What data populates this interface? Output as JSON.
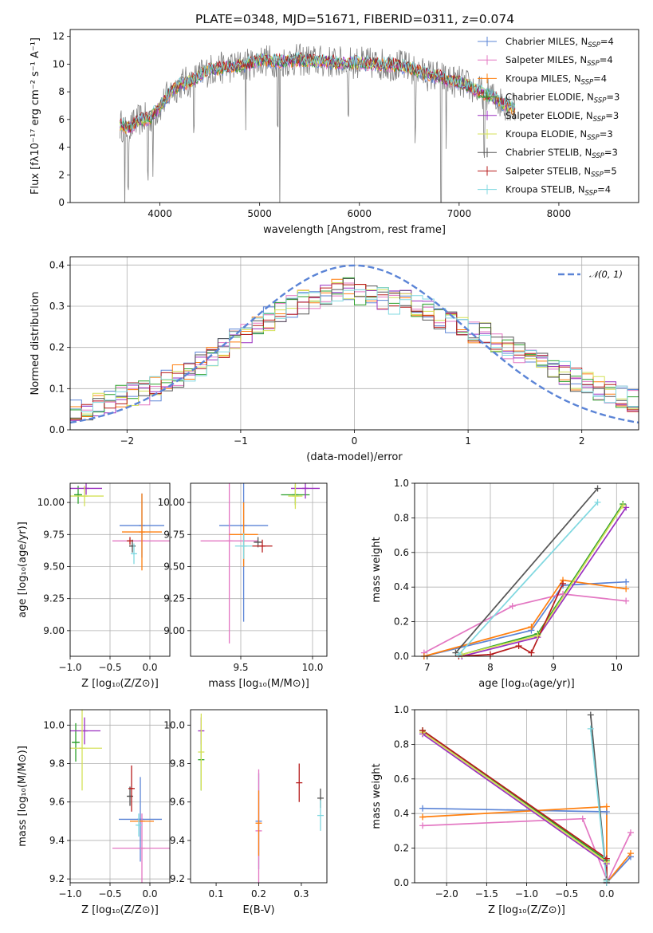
{
  "page": {
    "title": "PLATE=0348, MJD=51671, FIBERID=0311, z=0.074"
  },
  "chart_data": [
    {
      "id": "spectrum",
      "type": "line",
      "title": "PLATE=0348, MJD=51671, FIBERID=0311, z=0.074",
      "xlabel": "wavelength [Angstrom, rest frame]",
      "ylabel": "Flux [fλ10⁻¹⁷ erg cm⁻² s⁻¹ A⁻¹]",
      "xlim": [
        3100,
        8800
      ],
      "ylim": [
        0,
        12.5
      ],
      "xticks": [
        4000,
        5000,
        6000,
        7000,
        8000
      ],
      "yticks": [
        0,
        2,
        4,
        6,
        8,
        10,
        12
      ],
      "grid": false,
      "legend": "upper right",
      "data_x": [
        3600,
        3700,
        3800,
        3900,
        4000,
        4100,
        4200,
        4300,
        4400,
        4500,
        4600,
        4700,
        4800,
        4900,
        5000,
        5200,
        5400,
        5600,
        5800,
        6000,
        6200,
        6400,
        6500,
        6600,
        6700,
        6800,
        6900,
        7000,
        7100,
        7200,
        7300,
        7400,
        7500,
        7550
      ],
      "data_y": [
        5.6,
        5.4,
        6.0,
        6.1,
        6.9,
        7.9,
        8.6,
        8.7,
        9.2,
        9.6,
        9.7,
        9.8,
        9.9,
        10.0,
        10.3,
        10.2,
        10.3,
        10.2,
        10.1,
        10.1,
        10.0,
        9.9,
        9.7,
        9.4,
        9.2,
        9.1,
        8.8,
        8.7,
        8.4,
        8.0,
        7.8,
        7.3,
        7.0,
        6.8
      ],
      "legend_entries": [
        {
          "label": "Chabrier MILES, N",
          "sub": "SSP",
          "suffix": "=4",
          "color": "#5b84d6"
        },
        {
          "label": "Salpeter MILES, N",
          "sub": "SSP",
          "suffix": "=4",
          "color": "#e377c2"
        },
        {
          "label": "Kroupa MILES, N",
          "sub": "SSP",
          "suffix": "=4",
          "color": "#ff7f0e"
        },
        {
          "label": "Chabrier ELODIE, N",
          "sub": "SSP",
          "suffix": "=3",
          "color": "#2ca02c"
        },
        {
          "label": "Salpeter ELODIE, N",
          "sub": "SSP",
          "suffix": "=3",
          "color": "#9b30c0"
        },
        {
          "label": "Kroupa ELODIE, N",
          "sub": "SSP",
          "suffix": "=3",
          "color": "#d4e157"
        },
        {
          "label": "Chabrier STELIB, N",
          "sub": "SSP",
          "suffix": "=3",
          "color": "#555555"
        },
        {
          "label": "Salpeter STELIB, N",
          "sub": "SSP",
          "suffix": "=5",
          "color": "#b71c1c"
        },
        {
          "label": "Kroupa STELIB, N",
          "sub": "SSP",
          "suffix": "=4",
          "color": "#80d8e0"
        }
      ]
    },
    {
      "id": "residuals",
      "type": "line",
      "xlabel": "(data-model)/error",
      "ylabel": "Normed distribution",
      "xlim": [
        -2.5,
        2.5
      ],
      "ylim": [
        0,
        0.42
      ],
      "xticks": [
        -2,
        -1,
        0,
        1,
        2
      ],
      "yticks": [
        0.0,
        0.1,
        0.2,
        0.3,
        0.4
      ],
      "grid": true,
      "legend": "upper right",
      "legend_label": "𝒩(0, 1)",
      "gaussian_color": "#5b84d6",
      "hist_centers": [
        -2.45,
        -2.35,
        -2.25,
        -2.15,
        -2.05,
        -1.95,
        -1.85,
        -1.75,
        -1.65,
        -1.55,
        -1.45,
        -1.35,
        -1.25,
        -1.15,
        -1.05,
        -0.95,
        -0.85,
        -0.75,
        -0.65,
        -0.55,
        -0.45,
        -0.35,
        -0.25,
        -0.15,
        -0.05,
        0.05,
        0.15,
        0.25,
        0.35,
        0.45,
        0.55,
        0.65,
        0.75,
        0.85,
        0.95,
        1.05,
        1.15,
        1.25,
        1.35,
        1.45,
        1.55,
        1.65,
        1.75,
        1.85,
        1.95,
        2.05,
        2.15,
        2.25,
        2.35,
        2.45
      ],
      "hist_base": [
        0.045,
        0.05,
        0.06,
        0.07,
        0.08,
        0.085,
        0.09,
        0.1,
        0.12,
        0.13,
        0.14,
        0.16,
        0.18,
        0.2,
        0.22,
        0.24,
        0.26,
        0.27,
        0.29,
        0.3,
        0.31,
        0.32,
        0.33,
        0.34,
        0.34,
        0.33,
        0.33,
        0.32,
        0.31,
        0.31,
        0.3,
        0.29,
        0.27,
        0.26,
        0.25,
        0.24,
        0.23,
        0.21,
        0.2,
        0.19,
        0.18,
        0.16,
        0.15,
        0.14,
        0.12,
        0.11,
        0.1,
        0.09,
        0.08,
        0.07
      ]
    },
    {
      "id": "age-vs-Z",
      "type": "scatter",
      "xlabel": "Z [log₁₀(Z/Z⊙)]",
      "ylabel": "age  [log₁₀(age/yr)]",
      "xlim": [
        -1.0,
        0.25
      ],
      "ylim": [
        8.8,
        10.15
      ],
      "xticks": [
        -1.0,
        -0.5,
        0.0
      ],
      "yticks": [
        9.0,
        9.25,
        9.5,
        9.75,
        10.0
      ],
      "grid": true,
      "points": [
        {
          "x": -0.1,
          "y": 9.82,
          "xerr": 0.28,
          "yerr": 0.25,
          "color": "#5b84d6"
        },
        {
          "x": -0.1,
          "y": 9.7,
          "xerr": 0.37,
          "yerr": 0.0,
          "color": "#e377c2"
        },
        {
          "x": -0.1,
          "y": 9.77,
          "xerr": 0.25,
          "yerr": 0.3,
          "color": "#ff7f0e"
        },
        {
          "x": -0.9,
          "y": 10.06,
          "xerr": 0.05,
          "yerr": 0.07,
          "color": "#2ca02c"
        },
        {
          "x": -0.8,
          "y": 10.11,
          "xerr": 0.2,
          "yerr": 0.05,
          "color": "#9b30c0"
        },
        {
          "x": -0.82,
          "y": 10.05,
          "xerr": 0.24,
          "yerr": 0.08,
          "color": "#d4e157"
        },
        {
          "x": -0.22,
          "y": 9.66,
          "xerr": 0.04,
          "yerr": 0.05,
          "color": "#555555"
        },
        {
          "x": -0.25,
          "y": 9.7,
          "xerr": 0.03,
          "yerr": 0.03,
          "color": "#b71c1c"
        },
        {
          "x": -0.2,
          "y": 9.6,
          "xerr": 0.02,
          "yerr": 0.08,
          "color": "#80d8e0"
        }
      ]
    },
    {
      "id": "age-vs-mass",
      "type": "scatter",
      "xlabel": "mass [log₁₀(M/M⊙)]",
      "ylabel": "",
      "xlim": [
        9.15,
        10.1
      ],
      "ylim": [
        8.8,
        10.15
      ],
      "xticks": [
        9.5,
        10.0
      ],
      "yticks": [
        9.0,
        9.25,
        9.5,
        9.75,
        10.0
      ],
      "grid": true,
      "points": [
        {
          "x": 9.52,
          "y": 9.82,
          "xerr": 0.17,
          "yerr": 0.75,
          "color": "#5b84d6"
        },
        {
          "x": 9.42,
          "y": 9.7,
          "xerr": 0.2,
          "yerr": 0.8,
          "color": "#e377c2"
        },
        {
          "x": 9.52,
          "y": 9.75,
          "xerr": 0.1,
          "yerr": 0.25,
          "color": "#ff7f0e"
        },
        {
          "x": 9.88,
          "y": 10.06,
          "xerr": 0.1,
          "yerr": 0.08,
          "color": "#2ca02c"
        },
        {
          "x": 9.95,
          "y": 10.11,
          "xerr": 0.1,
          "yerr": 0.08,
          "color": "#9b30c0"
        },
        {
          "x": 9.88,
          "y": 10.05,
          "xerr": 0.05,
          "yerr": 0.1,
          "color": "#d4e157"
        },
        {
          "x": 9.62,
          "y": 9.69,
          "xerr": 0.03,
          "yerr": 0.04,
          "color": "#555555"
        },
        {
          "x": 9.65,
          "y": 9.66,
          "xerr": 0.07,
          "yerr": 0.05,
          "color": "#b71c1c"
        },
        {
          "x": 9.52,
          "y": 9.66,
          "xerr": 0.06,
          "yerr": 0.1,
          "color": "#80d8e0"
        }
      ]
    },
    {
      "id": "weight-vs-age",
      "type": "line",
      "xlabel": "age  [log₁₀(age/yr)]",
      "ylabel": "mass weight",
      "xlim": [
        6.8,
        10.35
      ],
      "ylim": [
        0,
        1.0
      ],
      "xticks": [
        7,
        8,
        9,
        10
      ],
      "yticks": [
        0.0,
        0.2,
        0.4,
        0.6,
        0.8,
        1.0
      ],
      "grid": true,
      "series": [
        {
          "color": "#5b84d6",
          "x": [
            6.95,
            8.65,
            9.15,
            10.15
          ],
          "y": [
            0.0,
            0.15,
            0.41,
            0.43
          ]
        },
        {
          "color": "#e377c2",
          "x": [
            6.95,
            8.35,
            9.15,
            10.15
          ],
          "y": [
            0.02,
            0.29,
            0.36,
            0.32
          ]
        },
        {
          "color": "#ff7f0e",
          "x": [
            6.95,
            8.65,
            9.15,
            10.15
          ],
          "y": [
            0.0,
            0.17,
            0.44,
            0.39
          ]
        },
        {
          "color": "#2ca02c",
          "x": [
            7.55,
            8.75,
            10.1
          ],
          "y": [
            0.01,
            0.13,
            0.88
          ]
        },
        {
          "color": "#9b30c0",
          "x": [
            7.55,
            8.75,
            10.15
          ],
          "y": [
            0.0,
            0.11,
            0.86
          ]
        },
        {
          "color": "#d4e157",
          "x": [
            7.55,
            8.75,
            10.1
          ],
          "y": [
            0.01,
            0.12,
            0.87
          ]
        },
        {
          "color": "#555555",
          "x": [
            7.45,
            9.7
          ],
          "y": [
            0.02,
            0.97
          ]
        },
        {
          "color": "#b71c1c",
          "x": [
            7.5,
            8.0,
            8.45,
            8.65,
            9.15
          ],
          "y": [
            0.0,
            0.01,
            0.06,
            0.02,
            0.42
          ]
        },
        {
          "color": "#80d8e0",
          "x": [
            7.5,
            9.7
          ],
          "y": [
            0.01,
            0.89
          ]
        }
      ]
    },
    {
      "id": "mass-vs-Z",
      "type": "scatter",
      "xlabel": "Z [log₁₀(Z/Z⊙)]",
      "ylabel": "mass [log₁₀(M/M⊙)]",
      "xlim": [
        -1.0,
        0.25
      ],
      "ylim": [
        9.18,
        10.08
      ],
      "xticks": [
        -1.0,
        -0.5,
        0.0
      ],
      "yticks": [
        9.2,
        9.4,
        9.6,
        9.8,
        10.0
      ],
      "grid": true,
      "points": [
        {
          "x": -0.12,
          "y": 9.51,
          "xerr": 0.27,
          "yerr": 0.22,
          "color": "#5b84d6"
        },
        {
          "x": -0.1,
          "y": 9.36,
          "xerr": 0.37,
          "yerr": 0.18,
          "color": "#e377c2"
        },
        {
          "x": -0.1,
          "y": 9.5,
          "xerr": 0.15,
          "yerr": 0.0,
          "color": "#ff7f0e"
        },
        {
          "x": -0.93,
          "y": 9.91,
          "xerr": 0.05,
          "yerr": 0.1,
          "color": "#2ca02c"
        },
        {
          "x": -0.82,
          "y": 9.97,
          "xerr": 0.2,
          "yerr": 0.07,
          "color": "#9b30c0"
        },
        {
          "x": -0.85,
          "y": 9.88,
          "xerr": 0.25,
          "yerr": 0.22,
          "color": "#d4e157"
        },
        {
          "x": -0.25,
          "y": 9.63,
          "xerr": 0.03,
          "yerr": 0.05,
          "color": "#555555"
        },
        {
          "x": -0.23,
          "y": 9.67,
          "xerr": 0.02,
          "yerr": 0.12,
          "color": "#b71c1c"
        },
        {
          "x": -0.14,
          "y": 9.48,
          "xerr": 0.02,
          "yerr": 0.06,
          "color": "#80d8e0"
        }
      ]
    },
    {
      "id": "mass-vs-EBV",
      "type": "scatter",
      "xlabel": "E(B-V)",
      "ylabel": "",
      "xlim": [
        0.04,
        0.36
      ],
      "ylim": [
        9.18,
        10.08
      ],
      "xticks": [
        0.1,
        0.2,
        0.3
      ],
      "yticks": [
        9.2,
        9.4,
        9.6,
        9.8,
        10.0
      ],
      "grid": false,
      "points": [
        {
          "x": 0.2,
          "y": 9.5,
          "xerr": 0.0,
          "yerr": 0.25,
          "color": "#5b84d6"
        },
        {
          "x": 0.2,
          "y": 9.45,
          "xerr": 0.0,
          "yerr": 0.32,
          "color": "#e377c2"
        },
        {
          "x": 0.2,
          "y": 9.49,
          "xerr": 0.0,
          "yerr": 0.17,
          "color": "#ff7f0e"
        },
        {
          "x": 0.065,
          "y": 9.82,
          "xerr": 0.0,
          "yerr": 0.16,
          "color": "#2ca02c"
        },
        {
          "x": 0.065,
          "y": 9.97,
          "xerr": 0.0,
          "yerr": 0.07,
          "color": "#9b30c0"
        },
        {
          "x": 0.065,
          "y": 9.86,
          "xerr": 0.0,
          "yerr": 0.2,
          "color": "#d4e157"
        },
        {
          "x": 0.345,
          "y": 9.62,
          "xerr": 0.0,
          "yerr": 0.05,
          "color": "#555555"
        },
        {
          "x": 0.295,
          "y": 9.7,
          "xerr": 0.0,
          "yerr": 0.1,
          "color": "#b71c1c"
        },
        {
          "x": 0.345,
          "y": 9.53,
          "xerr": 0.0,
          "yerr": 0.08,
          "color": "#80d8e0"
        }
      ]
    },
    {
      "id": "weight-vs-Z",
      "type": "line",
      "xlabel": "Z [log₁₀(Z/Z⊙)]",
      "ylabel": "mass weight",
      "xlim": [
        -2.4,
        0.4
      ],
      "ylim": [
        0,
        1.0
      ],
      "xticks": [
        -2.0,
        -1.5,
        -1.0,
        -0.5,
        0.0
      ],
      "yticks": [
        0.0,
        0.2,
        0.4,
        0.6,
        0.8,
        1.0
      ],
      "grid": true,
      "series": [
        {
          "color": "#5b84d6",
          "x": [
            -2.3,
            0.0,
            0.0,
            0.3
          ],
          "y": [
            0.43,
            0.41,
            0.0,
            0.15
          ]
        },
        {
          "color": "#e377c2",
          "x": [
            -2.3,
            -0.3,
            0.0,
            0.0,
            0.3
          ],
          "y": [
            0.33,
            0.37,
            0.02,
            0.0,
            0.29
          ]
        },
        {
          "color": "#ff7f0e",
          "x": [
            -2.3,
            0.0,
            0.0,
            0.3
          ],
          "y": [
            0.38,
            0.44,
            0.0,
            0.17
          ]
        },
        {
          "color": "#2ca02c",
          "x": [
            -2.3,
            0.0,
            0.0
          ],
          "y": [
            0.88,
            0.13,
            0.01
          ]
        },
        {
          "color": "#9b30c0",
          "x": [
            -2.3,
            0.0,
            0.0
          ],
          "y": [
            0.86,
            0.11,
            0.0
          ]
        },
        {
          "color": "#d4e157",
          "x": [
            -2.3,
            0.0,
            0.0
          ],
          "y": [
            0.87,
            0.12,
            0.01
          ]
        },
        {
          "color": "#555555",
          "x": [
            -0.2,
            0.0,
            0.0
          ],
          "y": [
            0.97,
            0.02,
            0.0
          ]
        },
        {
          "color": "#b71c1c",
          "x": [
            -2.3,
            0.0,
            0.0
          ],
          "y": [
            0.88,
            0.14,
            0.0
          ]
        },
        {
          "color": "#80d8e0",
          "x": [
            -0.2,
            0.0,
            0.0
          ],
          "y": [
            0.89,
            0.01,
            0.0
          ]
        }
      ]
    }
  ]
}
